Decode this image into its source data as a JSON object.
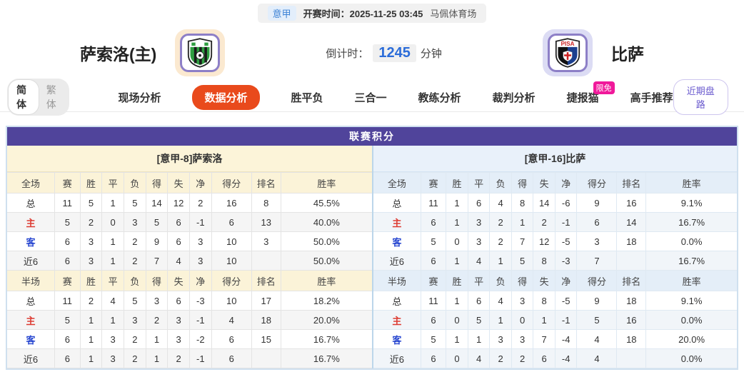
{
  "top_bar": {
    "league_badge": "意甲",
    "kickoff_label": "开赛时间：",
    "kickoff_time": "2025-11-25 03:45",
    "venue": "马佩体育场"
  },
  "match": {
    "home_name": "萨索洛(主)",
    "away_name": "比萨",
    "countdown_label": "倒计时：",
    "countdown_value": "1245",
    "countdown_unit": "分钟",
    "icons": {
      "home_crest": "sassuolo-crest",
      "away_crest": "pisa-crest"
    }
  },
  "nav": {
    "lang_simplified": "简体",
    "lang_traditional": "繁体",
    "tabs": [
      {
        "label": "现场分析",
        "active": false
      },
      {
        "label": "数据分析",
        "active": true
      },
      {
        "label": "胜平负",
        "active": false
      },
      {
        "label": "三合一",
        "active": false
      },
      {
        "label": "教练分析",
        "active": false
      },
      {
        "label": "裁判分析",
        "active": false
      },
      {
        "label": "捷报猫",
        "active": false,
        "badge": "限免"
      },
      {
        "label": "高手推荐",
        "active": false
      }
    ],
    "recent_trend_button": "近期盘路"
  },
  "colors": {
    "accent_purple": "#50449b",
    "active_tab_orange": "#e94a1c",
    "badge_pink": "#f0199a",
    "home_row_red": "#dd3b32",
    "away_row_blue": "#2847d0",
    "value_blue": "#2b6cd9"
  },
  "league_table": {
    "title": "联赛积分",
    "columns": [
      "赛",
      "胜",
      "平",
      "负",
      "得",
      "失",
      "净",
      "得分",
      "排名",
      "胜率"
    ],
    "sides": [
      {
        "header": "[意甲-8]萨索洛",
        "theme": "cream",
        "sections": [
          {
            "label": "全场",
            "rows": [
              {
                "label": "总",
                "type": "total",
                "values": [
                  "11",
                  "5",
                  "1",
                  "5",
                  "14",
                  "12",
                  "2",
                  "16",
                  "8",
                  "45.5%"
                ]
              },
              {
                "label": "主",
                "type": "home",
                "values": [
                  "5",
                  "2",
                  "0",
                  "3",
                  "5",
                  "6",
                  "-1",
                  "6",
                  "13",
                  "40.0%"
                ]
              },
              {
                "label": "客",
                "type": "away",
                "values": [
                  "6",
                  "3",
                  "1",
                  "2",
                  "9",
                  "6",
                  "3",
                  "10",
                  "3",
                  "50.0%"
                ]
              },
              {
                "label": "近6",
                "type": "recent",
                "values": [
                  "6",
                  "3",
                  "1",
                  "2",
                  "7",
                  "4",
                  "3",
                  "10",
                  "",
                  "50.0%"
                ]
              }
            ]
          },
          {
            "label": "半场",
            "rows": [
              {
                "label": "总",
                "type": "total",
                "values": [
                  "11",
                  "2",
                  "4",
                  "5",
                  "3",
                  "6",
                  "-3",
                  "10",
                  "17",
                  "18.2%"
                ]
              },
              {
                "label": "主",
                "type": "home",
                "values": [
                  "5",
                  "1",
                  "1",
                  "3",
                  "2",
                  "3",
                  "-1",
                  "4",
                  "18",
                  "20.0%"
                ]
              },
              {
                "label": "客",
                "type": "away",
                "values": [
                  "6",
                  "1",
                  "3",
                  "2",
                  "1",
                  "3",
                  "-2",
                  "6",
                  "15",
                  "16.7%"
                ]
              },
              {
                "label": "近6",
                "type": "recent",
                "values": [
                  "6",
                  "1",
                  "3",
                  "2",
                  "1",
                  "2",
                  "-1",
                  "6",
                  "",
                  "16.7%"
                ]
              }
            ]
          }
        ]
      },
      {
        "header": "[意甲-16]比萨",
        "theme": "blue",
        "sections": [
          {
            "label": "全场",
            "rows": [
              {
                "label": "总",
                "type": "total",
                "values": [
                  "11",
                  "1",
                  "6",
                  "4",
                  "8",
                  "14",
                  "-6",
                  "9",
                  "16",
                  "9.1%"
                ]
              },
              {
                "label": "主",
                "type": "home",
                "values": [
                  "6",
                  "1",
                  "3",
                  "2",
                  "1",
                  "2",
                  "-1",
                  "6",
                  "14",
                  "16.7%"
                ]
              },
              {
                "label": "客",
                "type": "away",
                "values": [
                  "5",
                  "0",
                  "3",
                  "2",
                  "7",
                  "12",
                  "-5",
                  "3",
                  "18",
                  "0.0%"
                ]
              },
              {
                "label": "近6",
                "type": "recent",
                "values": [
                  "6",
                  "1",
                  "4",
                  "1",
                  "5",
                  "8",
                  "-3",
                  "7",
                  "",
                  "16.7%"
                ]
              }
            ]
          },
          {
            "label": "半场",
            "rows": [
              {
                "label": "总",
                "type": "total",
                "values": [
                  "11",
                  "1",
                  "6",
                  "4",
                  "3",
                  "8",
                  "-5",
                  "9",
                  "18",
                  "9.1%"
                ]
              },
              {
                "label": "主",
                "type": "home",
                "values": [
                  "6",
                  "0",
                  "5",
                  "1",
                  "0",
                  "1",
                  "-1",
                  "5",
                  "16",
                  "0.0%"
                ]
              },
              {
                "label": "客",
                "type": "away",
                "values": [
                  "5",
                  "1",
                  "1",
                  "3",
                  "3",
                  "7",
                  "-4",
                  "4",
                  "18",
                  "20.0%"
                ]
              },
              {
                "label": "近6",
                "type": "recent",
                "values": [
                  "6",
                  "0",
                  "4",
                  "2",
                  "2",
                  "6",
                  "-4",
                  "4",
                  "",
                  "0.0%"
                ]
              }
            ]
          }
        ]
      }
    ]
  }
}
